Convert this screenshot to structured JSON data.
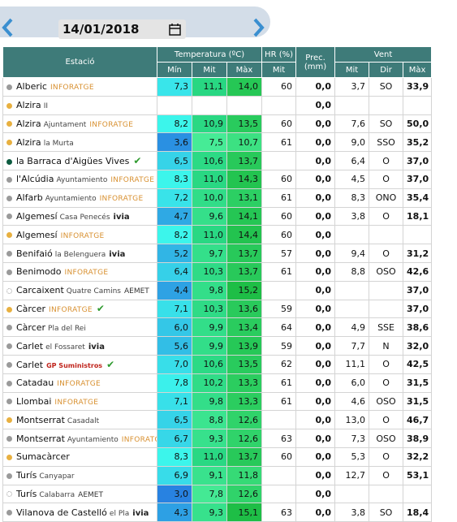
{
  "header": {
    "date": "14/01/2018"
  },
  "table": {
    "columns": {
      "station": "Estació",
      "temp": "Temperatura (ºC)",
      "hr": "HR (%)",
      "prec": "Prec. (mm)",
      "wind": "Vent",
      "sub": [
        "Mín",
        "Mit",
        "Màx",
        "Mit",
        "Mit",
        "Dir",
        "Màx"
      ]
    },
    "rows": [
      {
        "dot": "grey",
        "name": "Alberic",
        "tag": "INFORATGE",
        "cells": [
          "7,3",
          "11,1",
          "14,0",
          "60",
          "0,0",
          "3,7",
          "SO",
          "33,9"
        ]
      },
      {
        "dot": "orange",
        "name": "Alzira",
        "sub": "II",
        "cells": [
          null,
          null,
          null,
          null,
          "0,0",
          null,
          null,
          null
        ]
      },
      {
        "dot": "orange",
        "name": "Alzira",
        "sub": "Ajuntament",
        "tag": "INFORATGE",
        "cells": [
          "8,2",
          "10,9",
          "13,5",
          "60",
          "0,0",
          "7,6",
          "SO",
          "50,0"
        ]
      },
      {
        "dot": "orange",
        "name": "Alzira",
        "sub": "la Murta",
        "cells": [
          "3,6",
          "7,5",
          "10,7",
          "61",
          "0,0",
          "9,0",
          "SSO",
          "35,2"
        ]
      },
      {
        "dot": "green",
        "name": "la Barraca d'Aigües Vives",
        "check": true,
        "cells": [
          "6,5",
          "10,6",
          "13,7",
          null,
          "0,0",
          "6,4",
          "O",
          "37,0"
        ]
      },
      {
        "dot": "grey",
        "name": "l'Alcúdia",
        "sub": "Ayuntamiento",
        "tag": "INFORATGE",
        "cells": [
          "8,3",
          "11,0",
          "14,3",
          "60",
          "0,0",
          "4,5",
          "O",
          "37,0"
        ]
      },
      {
        "dot": "grey",
        "name": "Alfarb",
        "sub": "Ayuntamiento",
        "tag": "INFORATGE",
        "cells": [
          "7,2",
          "10,0",
          "13,1",
          "61",
          "0,0",
          "8,3",
          "ONO",
          "35,4"
        ]
      },
      {
        "dot": "grey",
        "name": "Algemesí",
        "sub": "Casa Penecés",
        "tag": "ivia",
        "cells": [
          "4,7",
          "9,6",
          "14,1",
          "60",
          "0,0",
          "3,8",
          "O",
          "18,1"
        ]
      },
      {
        "dot": "orange",
        "name": "Algemesí",
        "tag": "INFORATGE",
        "cells": [
          "8,2",
          "11,0",
          "14,4",
          "60",
          "0,0",
          null,
          null,
          null
        ]
      },
      {
        "dot": "grey",
        "name": "Benifaió",
        "sub": "la Belenguera",
        "tag": "ivia",
        "cells": [
          "5,2",
          "9,7",
          "13,7",
          "57",
          "0,0",
          "9,4",
          "O",
          "31,2"
        ]
      },
      {
        "dot": "grey",
        "name": "Benimodo",
        "tag": "INFORATGE",
        "cells": [
          "6,4",
          "10,3",
          "13,7",
          "61",
          "0,0",
          "8,8",
          "OSO",
          "42,6"
        ]
      },
      {
        "dot": "empty",
        "name": "Carcaixent",
        "sub": "Quatre Camins",
        "tag": "AEMET",
        "cells": [
          "4,4",
          "9,8",
          "15,2",
          null,
          "0,0",
          null,
          null,
          "37,0"
        ]
      },
      {
        "dot": "orange",
        "name": "Càrcer",
        "tag": "INFORATGE",
        "check": true,
        "cells": [
          "7,1",
          "10,3",
          "13,6",
          "59",
          "0,0",
          null,
          null,
          "37,0"
        ]
      },
      {
        "dot": "grey",
        "name": "Càrcer",
        "sub": "Pla del Rei",
        "cells": [
          "6,0",
          "9,9",
          "13,4",
          "64",
          "0,0",
          "4,9",
          "SSE",
          "38,6"
        ]
      },
      {
        "dot": "grey",
        "name": "Carlet",
        "sub": "el Fossaret",
        "tag": "ivia",
        "cells": [
          "5,6",
          "9,9",
          "13,9",
          "59",
          "0,0",
          "7,7",
          "N",
          "32,0"
        ]
      },
      {
        "dot": "grey",
        "name": "Carlet",
        "tag": "GP Suministros",
        "check": true,
        "cells": [
          "7,0",
          "10,6",
          "13,5",
          "62",
          "0,0",
          "11,1",
          "O",
          "42,5"
        ]
      },
      {
        "dot": "grey",
        "name": "Catadau",
        "tag": "INFORATGE",
        "cells": [
          "7,8",
          "10,2",
          "13,3",
          "61",
          "0,0",
          "6,0",
          "O",
          "31,5"
        ]
      },
      {
        "dot": "grey",
        "name": "Llombai",
        "tag": "INFORATGE",
        "cells": [
          "7,1",
          "9,8",
          "13,3",
          "61",
          "0,0",
          "4,6",
          "OSO",
          "31,5"
        ]
      },
      {
        "dot": "orange",
        "name": "Montserrat",
        "sub": "Casadalt",
        "cells": [
          "6,5",
          "8,8",
          "12,6",
          null,
          "0,0",
          "13,0",
          "O",
          "46,7"
        ]
      },
      {
        "dot": "grey",
        "name": "Montserrat",
        "sub": "Ayuntamiento",
        "tag": "INFORATGE",
        "cells": [
          "6,7",
          "9,3",
          "12,6",
          "63",
          "0,0",
          "7,3",
          "OSO",
          "38,9"
        ]
      },
      {
        "dot": "orange",
        "name": "Sumacàrcer",
        "cells": [
          "8,3",
          "11,0",
          "13,7",
          "60",
          "0,0",
          "5,3",
          "O",
          "32,2"
        ]
      },
      {
        "dot": "grey",
        "name": "Turís",
        "sub": "Canyapar",
        "cells": [
          "6,9",
          "9,1",
          "11,8",
          null,
          "0,0",
          "12,7",
          "O",
          "53,1"
        ]
      },
      {
        "dot": "empty",
        "name": "Turís",
        "sub": "Calabarra",
        "tag": "AEMET",
        "cells": [
          "3,0",
          "7,8",
          "12,6",
          null,
          "0,0",
          null,
          null,
          null
        ]
      },
      {
        "dot": "grey",
        "name": "Vilanova de Castelló",
        "sub": "el Pla",
        "tag": "ivia",
        "cells": [
          "4,3",
          "9,3",
          "15,1",
          "63",
          "0,0",
          "3,8",
          "SO",
          "18,4"
        ]
      }
    ]
  }
}
